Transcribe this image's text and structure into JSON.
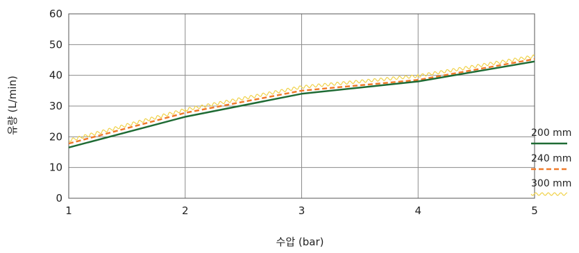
{
  "chart_data": {
    "type": "line",
    "xlabel": "수압 (bar)",
    "ylabel": "유량 (L/min)",
    "x": [
      1,
      2,
      3,
      4,
      5
    ],
    "xlim": [
      1,
      5
    ],
    "ylim": [
      0,
      60
    ],
    "xticks": [
      "1",
      "2",
      "3",
      "4",
      "5"
    ],
    "yticks": [
      "0",
      "10",
      "20",
      "30",
      "40",
      "50",
      "60"
    ],
    "grid": true,
    "legend_position": "right",
    "series": [
      {
        "name": "200 mm",
        "values": [
          16.5,
          26.5,
          34,
          38,
          44.5
        ],
        "color": "#1e6b34",
        "style": "solid"
      },
      {
        "name": "240 mm",
        "values": [
          17.8,
          27.8,
          35,
          38.5,
          45.3
        ],
        "color": "#f07a2a",
        "style": "dashed"
      },
      {
        "name": "300 mm",
        "values": [
          18.8,
          28.8,
          36.2,
          39.8,
          46.2
        ],
        "color": "#f0d24a",
        "style": "wavy"
      }
    ]
  }
}
